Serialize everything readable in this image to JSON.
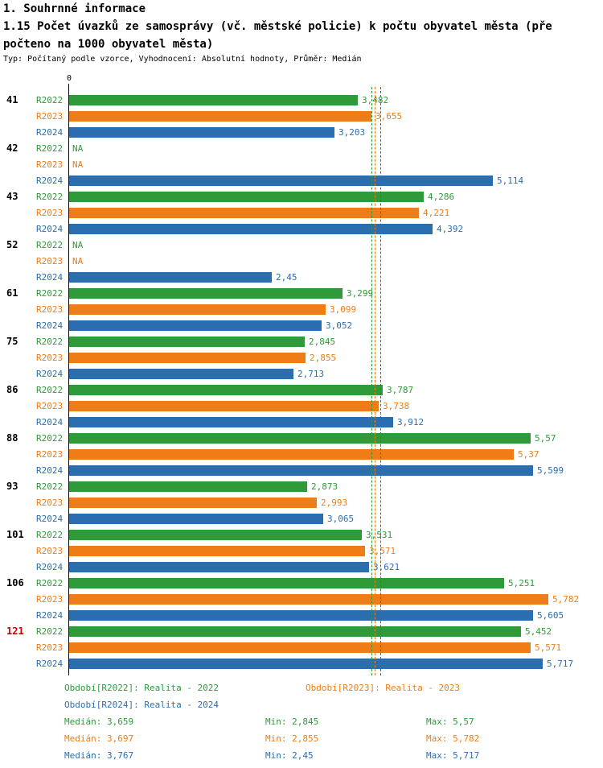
{
  "header": {
    "title": "1. Souhrnné informace",
    "subtitle_line1": "1.15 Počet úvazků ze samosprávy (vč. městské policie) k počtu obyvatel města (pře",
    "subtitle_line2": "počteno na 1000 obyvatel města)",
    "meta": "Typ: Počítaný podle vzorce, Vyhodnocení: Absolutní hodnoty, Průměr: Medián"
  },
  "chart_data": {
    "type": "bar",
    "orientation": "horizontal",
    "x_axis": {
      "origin_label": "0",
      "min": 0,
      "max": 6.46,
      "grid": false
    },
    "legend_position": "bottom",
    "highlight_label_color": "#cc0000",
    "normal_label_color": "#000000",
    "stats_labels": {
      "median": "Medián",
      "min": "Min",
      "max": "Max"
    },
    "series": [
      {
        "name": "R2022",
        "legend": "Období[R2022]: Realita - 2022",
        "color": "#2e9b38",
        "median": 3.659,
        "median_display": "3,659",
        "min_display": "2,845",
        "max_display": "5,57"
      },
      {
        "name": "R2023",
        "legend": "Období[R2023]: Realita - 2023",
        "color": "#ee7d18",
        "median": 3.697,
        "median_display": "3,697",
        "min_display": "2,855",
        "max_display": "5,782"
      },
      {
        "name": "R2024",
        "legend": "Období[R2024]: Realita - 2024",
        "color": "#2a6eaf",
        "median": 3.767,
        "median_display": "3,767",
        "min_display": "2,45",
        "max_display": "5,717"
      }
    ],
    "groups": [
      {
        "label": "41",
        "highlight": false,
        "values": [
          3.482,
          3.655,
          3.203
        ],
        "displays": [
          "3,482",
          "3,655",
          "3,203"
        ]
      },
      {
        "label": "42",
        "highlight": false,
        "values": [
          null,
          null,
          5.114
        ],
        "displays": [
          "NA",
          "NA",
          "5,114"
        ]
      },
      {
        "label": "43",
        "highlight": false,
        "values": [
          4.286,
          4.221,
          4.392
        ],
        "displays": [
          "4,286",
          "4,221",
          "4,392"
        ]
      },
      {
        "label": "52",
        "highlight": false,
        "values": [
          null,
          null,
          2.45
        ],
        "displays": [
          "NA",
          "NA",
          "2,45"
        ]
      },
      {
        "label": "61",
        "highlight": false,
        "values": [
          3.299,
          3.099,
          3.052
        ],
        "displays": [
          "3,299",
          "3,099",
          "3,052"
        ]
      },
      {
        "label": "75",
        "highlight": false,
        "values": [
          2.845,
          2.855,
          2.713
        ],
        "displays": [
          "2,845",
          "2,855",
          "2,713"
        ]
      },
      {
        "label": "86",
        "highlight": false,
        "values": [
          3.787,
          3.738,
          3.912
        ],
        "displays": [
          "3,787",
          "3,738",
          "3,912"
        ]
      },
      {
        "label": "88",
        "highlight": false,
        "values": [
          5.57,
          5.37,
          5.599
        ],
        "displays": [
          "5,57",
          "5,37",
          "5,599"
        ]
      },
      {
        "label": "93",
        "highlight": false,
        "values": [
          2.873,
          2.993,
          3.065
        ],
        "displays": [
          "2,873",
          "2,993",
          "3,065"
        ]
      },
      {
        "label": "101",
        "highlight": false,
        "values": [
          3.531,
          3.571,
          3.621
        ],
        "displays": [
          "3,531",
          "3,571",
          "3,621"
        ]
      },
      {
        "label": "106",
        "highlight": false,
        "values": [
          5.251,
          5.782,
          5.605
        ],
        "displays": [
          "5,251",
          "5,782",
          "5,605"
        ]
      },
      {
        "label": "121",
        "highlight": true,
        "values": [
          5.452,
          5.571,
          5.717
        ],
        "displays": [
          "5,452",
          "5,571",
          "5,717"
        ]
      }
    ]
  }
}
